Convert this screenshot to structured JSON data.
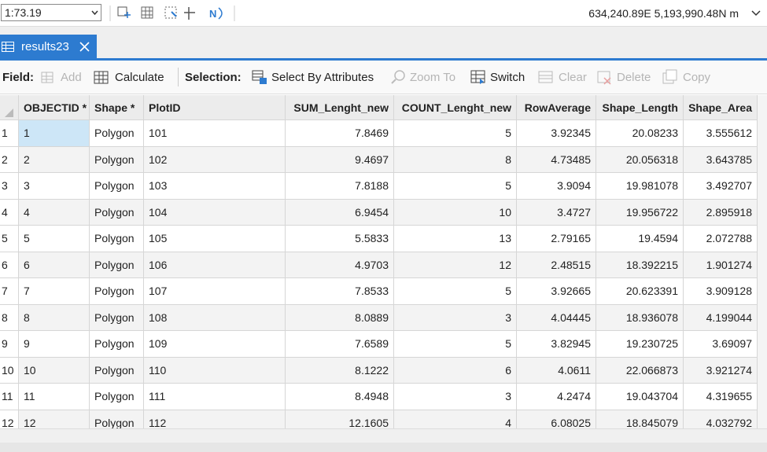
{
  "status_bar": {
    "scale": "1:73.19",
    "coordinates": "634,240.89E 5,193,990.48N m"
  },
  "tab": {
    "title": "results23"
  },
  "toolbar": {
    "field_label": "Field:",
    "field_buttons": [
      "Add",
      "Calculate"
    ],
    "selection_label": "Selection:",
    "selection_buttons": [
      "Select By Attributes",
      "Zoom To",
      "Switch",
      "Clear",
      "Delete",
      "Copy"
    ]
  },
  "table": {
    "columns": [
      "OBJECTID *",
      "Shape *",
      "PlotID",
      "SUM_Lenght_new",
      "COUNT_Lenght_new",
      "RowAverage",
      "Shape_Length",
      "Shape_Area"
    ],
    "row_numbers": [
      "1",
      "2",
      "3",
      "4",
      "5",
      "6",
      "7",
      "8",
      "9",
      "10",
      "11",
      "12"
    ],
    "rows": [
      [
        "1",
        "Polygon",
        "101",
        "7.8469",
        "5",
        "3.92345",
        "20.08233",
        "3.555612"
      ],
      [
        "2",
        "Polygon",
        "102",
        "9.4697",
        "8",
        "4.73485",
        "20.056318",
        "3.643785"
      ],
      [
        "3",
        "Polygon",
        "103",
        "7.8188",
        "5",
        "3.9094",
        "19.981078",
        "3.492707"
      ],
      [
        "4",
        "Polygon",
        "104",
        "6.9454",
        "10",
        "3.4727",
        "19.956722",
        "2.895918"
      ],
      [
        "5",
        "Polygon",
        "105",
        "5.5833",
        "13",
        "2.79165",
        "19.4594",
        "2.072788"
      ],
      [
        "6",
        "Polygon",
        "106",
        "4.9703",
        "12",
        "2.48515",
        "18.392215",
        "1.901274"
      ],
      [
        "7",
        "Polygon",
        "107",
        "7.8533",
        "5",
        "3.92665",
        "20.623391",
        "3.909128"
      ],
      [
        "8",
        "Polygon",
        "108",
        "8.0889",
        "3",
        "4.04445",
        "18.936078",
        "4.199044"
      ],
      [
        "9",
        "Polygon",
        "109",
        "7.6589",
        "5",
        "3.82945",
        "19.230725",
        "3.69097"
      ],
      [
        "10",
        "Polygon",
        "110",
        "8.1222",
        "6",
        "4.0611",
        "22.066873",
        "3.921274"
      ],
      [
        "11",
        "Polygon",
        "111",
        "8.4948",
        "3",
        "4.2474",
        "19.043704",
        "4.319655"
      ],
      [
        "12",
        "Polygon",
        "112",
        "12.1605",
        "4",
        "6.08025",
        "18.845079",
        "4.032792"
      ]
    ]
  }
}
